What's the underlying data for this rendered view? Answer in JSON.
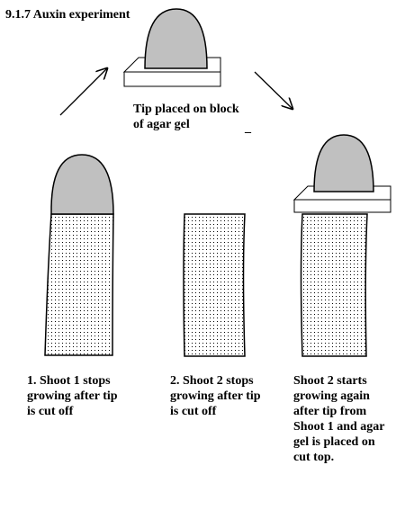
{
  "title": "9.1.7 Auxin experiment",
  "tip_caption": "Tip placed on block\nof agar gel",
  "stray_mark": "_",
  "captions": {
    "shoot1": "1. Shoot 1 stops\ngrowing after tip\nis cut off",
    "shoot2": "2. Shoot 2 stops\ngrowing after tip\nis cut off",
    "shoot3": "Shoot 2 starts\ngrowing again\n after tip from\nShoot 1 and agar\n gel is placed on\ncut top."
  },
  "colors": {
    "tip_fill": "#c0c0c0",
    "outline": "#000000",
    "background": "#ffffff"
  }
}
